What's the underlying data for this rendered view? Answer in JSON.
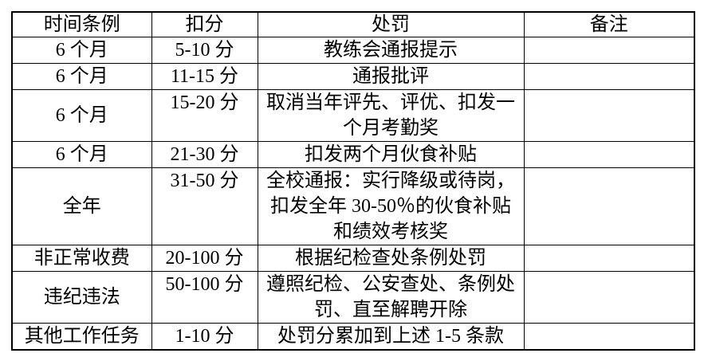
{
  "table": {
    "headers": [
      "时间条例",
      "扣分",
      "处罚",
      "备注"
    ],
    "rows": [
      {
        "time": "6 个月",
        "points": "5-10 分",
        "punishment": "教练会通报提示",
        "remark": ""
      },
      {
        "time": "6 个月",
        "points": "11-15 分",
        "punishment": "通报批评",
        "remark": ""
      },
      {
        "time": "6 个月",
        "points": "15-20 分",
        "punishment": "取消当年评先、评优、扣发一\n个月考勤奖",
        "remark": ""
      },
      {
        "time": "6 个月",
        "points": "21-30 分",
        "punishment": "扣发两个月伙食补贴",
        "remark": ""
      },
      {
        "time": "全年",
        "points": "31-50 分",
        "punishment": "全校通报：实行降级或待岗，\n扣发全年 30-50％的伙食补贴\n和绩效考核奖",
        "remark": ""
      },
      {
        "time": "非正常收费",
        "points": "20-100 分",
        "punishment": "根据纪检查处条例处罚",
        "remark": ""
      },
      {
        "time": "违纪违法",
        "points": "50-100 分",
        "punishment": "遵照纪检、公安查处、条例处\n罚、直至解聘开除",
        "remark": ""
      },
      {
        "time": "其他工作任务",
        "points": "1-10 分",
        "punishment": "处罚分累加到上述 1-5 条款",
        "remark": ""
      }
    ]
  }
}
